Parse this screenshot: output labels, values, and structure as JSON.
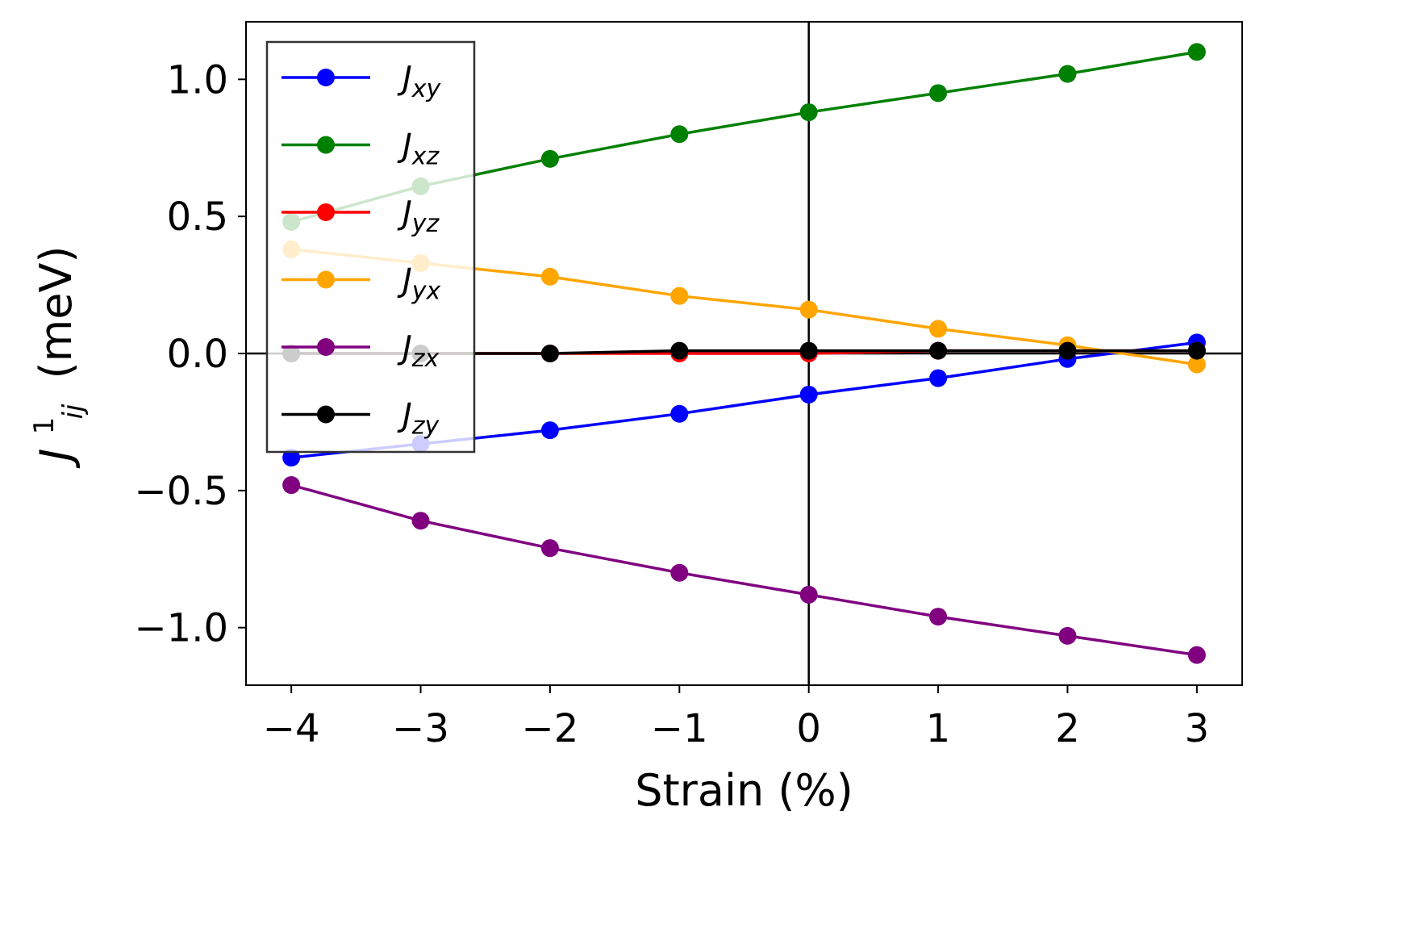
{
  "chart_data": {
    "type": "line",
    "xlabel": "Strain (%)",
    "ylabel": {
      "base": "J",
      "superscript": "1",
      "subscript": "ij",
      "unit": "(meV)"
    },
    "x": [
      -4,
      -3,
      -2,
      -1,
      0,
      1,
      2,
      3
    ],
    "xlim": [
      -4.35,
      3.35
    ],
    "ylim": [
      -1.21,
      1.21
    ],
    "xticks": [
      -4,
      -3,
      -2,
      -1,
      0,
      1,
      2,
      3
    ],
    "xtick_labels": [
      "−4",
      "−3",
      "−2",
      "−1",
      "0",
      "1",
      "2",
      "3"
    ],
    "yticks": [
      1.0,
      0.5,
      0.0,
      -0.5,
      -1.0
    ],
    "ytick_labels": [
      "1.0",
      "0.5",
      "0.0",
      "−0.5",
      "−1.0"
    ],
    "reference_lines": {
      "horizontal_at": 0,
      "vertical_at": 0
    },
    "legend_position": "upper-left",
    "series": [
      {
        "name": "J",
        "subscript": "xy",
        "color": "#0000ff",
        "values": [
          -0.38,
          -0.33,
          -0.28,
          -0.22,
          -0.15,
          -0.09,
          -0.02,
          0.04
        ]
      },
      {
        "name": "J",
        "subscript": "xz",
        "color": "#008000",
        "values": [
          0.48,
          0.61,
          0.71,
          0.8,
          0.88,
          0.95,
          1.02,
          1.1
        ]
      },
      {
        "name": "J",
        "subscript": "yz",
        "color": "#ff0000",
        "values": [
          0.0,
          0.0,
          0.0,
          0.0,
          0.0,
          0.01,
          0.01,
          0.01
        ]
      },
      {
        "name": "J",
        "subscript": "yx",
        "color": "#ffa500",
        "values": [
          0.38,
          0.33,
          0.28,
          0.21,
          0.16,
          0.09,
          0.03,
          -0.04
        ]
      },
      {
        "name": "J",
        "subscript": "zx",
        "color": "#800080",
        "values": [
          -0.48,
          -0.61,
          -0.71,
          -0.8,
          -0.88,
          -0.96,
          -1.03,
          -1.1
        ]
      },
      {
        "name": "J",
        "subscript": "zy",
        "color": "#000000",
        "values": [
          0.0,
          0.0,
          0.0,
          0.01,
          0.01,
          0.01,
          0.01,
          0.01
        ]
      }
    ]
  }
}
